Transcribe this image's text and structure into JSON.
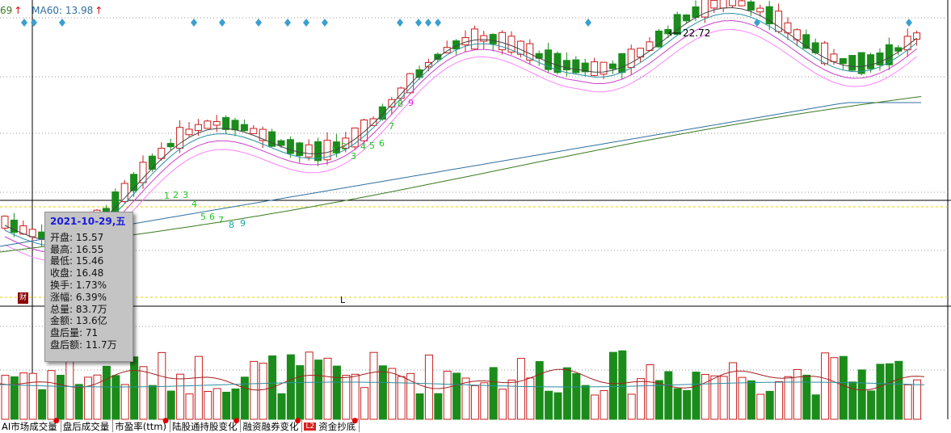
{
  "ma_header": {
    "prev_value": "69",
    "prev_arrow": "↑",
    "ma60_label": "MA60: 13.98",
    "ma60_arrow": "↑"
  },
  "colors": {
    "up": "#c81e1e",
    "down": "#1b8c1b",
    "ma5": "#444444",
    "ma10": "#2a8fa0",
    "ma20": "#cc40cc",
    "ma30": "#ff80ff",
    "ma60": "#2f6fa0",
    "ma120": "#3a7a20",
    "diamond": "#3a9fd0"
  },
  "tooltip": {
    "date": "2021-10-29,五",
    "rows": [
      "开盘: 15.57",
      "最高: 16.55",
      "最低: 15.46",
      "收盘: 16.48",
      "换手: 1.73%",
      "涨幅: 6.39%",
      "总量: 83.7万",
      "金额: 13.6亿",
      "盘后量: 71",
      "盘后额: 11.7万"
    ]
  },
  "annotations": {
    "high_price": "22.72",
    "finance_marker": "财",
    "cursor_label": "L"
  },
  "td_counts": [
    {
      "label": "1",
      "color": "green"
    },
    {
      "label": "2",
      "color": "green"
    },
    {
      "label": "3",
      "color": "green"
    },
    {
      "label": "4",
      "color": "green"
    },
    {
      "label": "5",
      "color": "green"
    },
    {
      "label": "6",
      "color": "green"
    },
    {
      "label": "7",
      "color": "green"
    },
    {
      "label": "8",
      "color": "teal"
    },
    {
      "label": "9",
      "color": "teal"
    },
    {
      "label": "1",
      "color": "green"
    },
    {
      "label": "2",
      "color": "green"
    },
    {
      "label": "3",
      "color": "green"
    },
    {
      "label": "4",
      "color": "green"
    },
    {
      "label": "5",
      "color": "green"
    },
    {
      "label": "6",
      "color": "green"
    },
    {
      "label": "7",
      "color": "green"
    },
    {
      "label": "8",
      "color": "green"
    },
    {
      "label": "9",
      "color": "magenta"
    }
  ],
  "tabs": [
    {
      "label": "AI市场成交量",
      "dot": true
    },
    {
      "label": "盘后成交量",
      "dot": false
    },
    {
      "label": "市盈率(ttm)",
      "dot": true
    },
    {
      "label": "陆股通持股变化",
      "dot": true
    },
    {
      "label": "融资融券变化",
      "dot": true
    },
    {
      "label": "资金抄底",
      "dot": true,
      "badge": "L2"
    }
  ]
}
